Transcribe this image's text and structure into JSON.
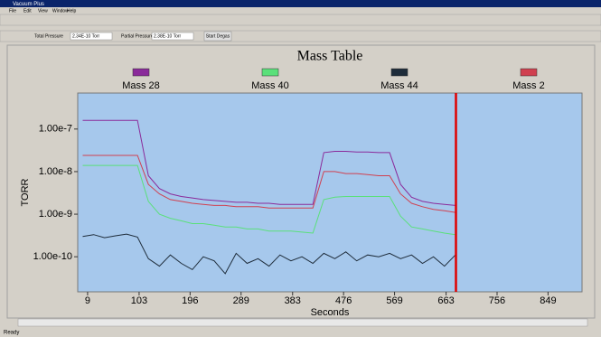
{
  "window": {
    "title": "Vacuum Plus",
    "menu": [
      "File",
      "Edit",
      "View",
      "Window",
      "Help"
    ],
    "toolbar": {
      "total_label": "Total Pressure",
      "total_value": "2.34E-10 Torr",
      "partial_label": "Partial Pressure",
      "partial_value": "2.38E-10 Torr",
      "degas": "Start Degas"
    },
    "status": "Ready"
  },
  "chart_data": {
    "type": "line",
    "title": "Mass Table",
    "x_label": "Seconds",
    "y_label": "TORR",
    "log_scale_y": true,
    "background": "#a6c8ec",
    "cursor_x": 681,
    "cursor_color": "#e00000",
    "xlim": [
      -9,
      911
    ],
    "xticks": [
      9,
      103,
      196,
      289,
      383,
      476,
      569,
      663,
      756,
      849
    ],
    "ylim": [
      1.5e-11,
      7e-07
    ],
    "yticks": [
      {
        "value": 1e-07,
        "label": "1.00e-7"
      },
      {
        "value": 1e-08,
        "label": "1.00e-8"
      },
      {
        "value": 1e-09,
        "label": "1.00e-9"
      },
      {
        "value": 1e-10,
        "label": "1.00e-10"
      }
    ],
    "x": [
      0,
      20,
      40,
      60,
      80,
      100,
      120,
      140,
      160,
      180,
      200,
      220,
      240,
      260,
      280,
      300,
      320,
      340,
      360,
      380,
      400,
      420,
      440,
      460,
      480,
      500,
      520,
      540,
      560,
      580,
      600,
      620,
      640,
      660,
      680
    ],
    "series": [
      {
        "name": "Mass 28",
        "color": "#8a2a9a",
        "values": [
          1.6e-07,
          1.6e-07,
          1.6e-07,
          1.6e-07,
          1.6e-07,
          1.6e-07,
          8e-09,
          4e-09,
          3e-09,
          2.6e-09,
          2.4e-09,
          2.2e-09,
          2.1e-09,
          2e-09,
          1.9e-09,
          1.9e-09,
          1.8e-09,
          1.8e-09,
          1.7e-09,
          1.7e-09,
          1.7e-09,
          1.7e-09,
          2.8e-08,
          3e-08,
          3e-08,
          2.9e-08,
          2.9e-08,
          2.8e-08,
          2.8e-08,
          5e-09,
          2.5e-09,
          2e-09,
          1.8e-09,
          1.7e-09,
          1.6e-09
        ]
      },
      {
        "name": "Mass 40",
        "color": "#5ae07a",
        "values": [
          1.4e-08,
          1.4e-08,
          1.4e-08,
          1.4e-08,
          1.4e-08,
          1.4e-08,
          2e-09,
          1e-09,
          8e-10,
          7e-10,
          6e-10,
          6e-10,
          5.5e-10,
          5e-10,
          5e-10,
          4.5e-10,
          4.5e-10,
          4e-10,
          4e-10,
          4e-10,
          3.8e-10,
          3.6e-10,
          2.2e-09,
          2.5e-09,
          2.6e-09,
          2.6e-09,
          2.6e-09,
          2.6e-09,
          2.6e-09,
          9e-10,
          5e-10,
          4.5e-10,
          4e-10,
          3.6e-10,
          3.3e-10
        ]
      },
      {
        "name": "Mass 44",
        "color": "#1e2c3a",
        "values": [
          3e-10,
          3.3e-10,
          2.8e-10,
          3.1e-10,
          3.4e-10,
          2.9e-10,
          9e-11,
          6e-11,
          1.1e-10,
          7e-11,
          5e-11,
          1e-10,
          8e-11,
          4e-11,
          1.2e-10,
          7e-11,
          9e-11,
          6e-11,
          1.1e-10,
          8e-11,
          1e-10,
          7e-11,
          1.2e-10,
          9e-11,
          1.3e-10,
          8e-11,
          1.1e-10,
          1e-10,
          1.2e-10,
          9e-11,
          1.1e-10,
          7e-11,
          1e-10,
          6e-11,
          1.1e-10
        ]
      },
      {
        "name": "Mass 2",
        "color": "#d04050",
        "values": [
          2.4e-08,
          2.4e-08,
          2.4e-08,
          2.4e-08,
          2.4e-08,
          2.4e-08,
          5e-09,
          3e-09,
          2.2e-09,
          2e-09,
          1.8e-09,
          1.7e-09,
          1.6e-09,
          1.6e-09,
          1.5e-09,
          1.5e-09,
          1.5e-09,
          1.4e-09,
          1.4e-09,
          1.4e-09,
          1.4e-09,
          1.4e-09,
          1e-08,
          1e-08,
          9e-09,
          9e-09,
          8.5e-09,
          8e-09,
          8e-09,
          3e-09,
          1.8e-09,
          1.5e-09,
          1.3e-09,
          1.2e-09,
          1.1e-09
        ]
      }
    ]
  }
}
